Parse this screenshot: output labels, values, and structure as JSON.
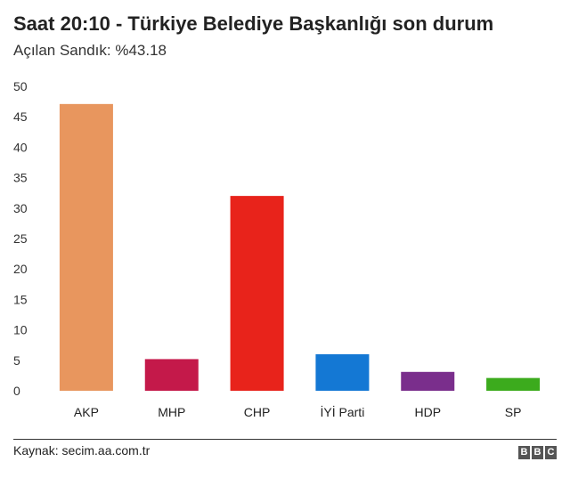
{
  "title": "Saat 20:10 - Türkiye Belediye Başkanlığı son durum",
  "subtitle": "Açılan Sandık: %43.18",
  "source": "Kaynak: secim.aa.com.tr",
  "logo": [
    "B",
    "B",
    "C"
  ],
  "chart_data": {
    "type": "bar",
    "title": "Saat 20:10 - Türkiye Belediye Başkanlığı son durum",
    "subtitle": "Açılan Sandık: %43.18",
    "categories": [
      "AKP",
      "MHP",
      "CHP",
      "İYİ Parti",
      "HDP",
      "SP"
    ],
    "values": [
      47.1,
      5.2,
      32.0,
      6.0,
      3.1,
      2.1
    ],
    "colors": [
      "#e8965e",
      "#c4194a",
      "#e8231b",
      "#1478d4",
      "#7a2e8c",
      "#3cab1d"
    ],
    "ylim": [
      0,
      50
    ],
    "yticks": [
      0,
      5,
      10,
      15,
      20,
      25,
      30,
      35,
      40,
      45,
      50
    ],
    "grid": false,
    "legend": "none"
  }
}
